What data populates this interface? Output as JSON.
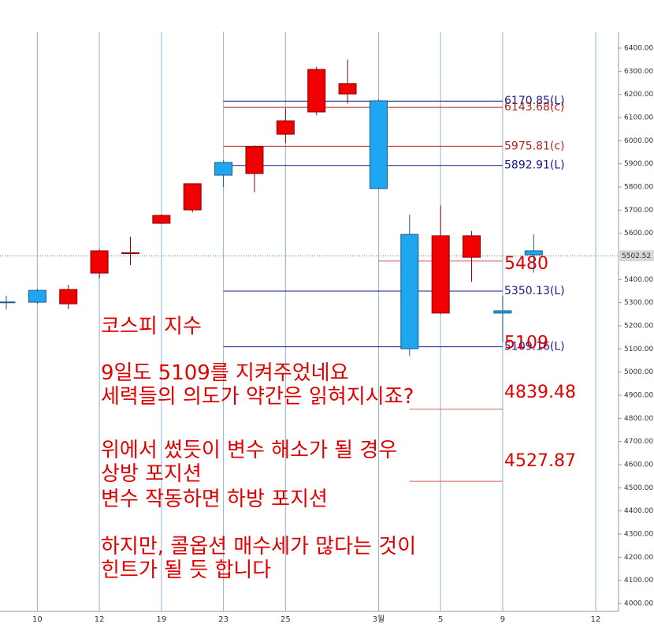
{
  "chart_data": {
    "type": "candlestick",
    "categories": [
      null,
      "10",
      null,
      "12",
      null,
      "19",
      null,
      "23",
      null,
      "25",
      null,
      null,
      "3월",
      null,
      "5",
      null,
      "9",
      null,
      null,
      "12"
    ],
    "open": [
      5303,
      5353,
      5295,
      5428,
      5512,
      5643,
      5701,
      5906,
      5858,
      6028,
      6124,
      6202,
      6172,
      5595,
      5255,
      5496,
      5265,
      5524,
      null,
      null
    ],
    "high": [
      5330,
      5360,
      5377,
      5530,
      5585,
      5680,
      5815,
      5915,
      5980,
      6140,
      6320,
      6350,
      6180,
      5680,
      5720,
      5610,
      5330,
      5595,
      null,
      null
    ],
    "low": [
      5270,
      5295,
      5272,
      5405,
      5462,
      5640,
      5690,
      5800,
      5777,
      5990,
      6110,
      6160,
      5790,
      5070,
      5250,
      5390,
      5130,
      5430,
      null,
      null
    ],
    "close": [
      5302,
      5302,
      5357,
      5524,
      5516,
      5677,
      5814,
      5851,
      5974,
      6086,
      6308,
      6247,
      5793,
      5101,
      5589,
      5589,
      5255,
      5507,
      null,
      null
    ],
    "up_color": "#f00000",
    "down_color": "#1ea7f0",
    "ylim": [
      3980,
      6440
    ],
    "yticks": [
      {
        "value": 4000,
        "label": "4000.00"
      },
      {
        "value": 4100,
        "label": "4100.00"
      },
      {
        "value": 4200,
        "label": "4200.00"
      },
      {
        "value": 4300,
        "label": "4300.00"
      },
      {
        "value": 4400,
        "label": "4400.00"
      },
      {
        "value": 4500,
        "label": "4500.00"
      },
      {
        "value": 4600,
        "label": "4600.00"
      },
      {
        "value": 4700,
        "label": "4700.00"
      },
      {
        "value": 4800,
        "label": "4800.00"
      },
      {
        "value": 4900,
        "label": "4900.00"
      },
      {
        "value": 5000,
        "label": "5000.00"
      },
      {
        "value": 5100,
        "label": "5100.00"
      },
      {
        "value": 5200,
        "label": "5200.00"
      },
      {
        "value": 5300,
        "label": "5300.00"
      },
      {
        "value": 5400,
        "label": "5400.00"
      },
      {
        "value": 5500,
        "label": "5500.00"
      },
      {
        "value": 5600,
        "label": "5600.00"
      },
      {
        "value": 5700,
        "label": "5700.00"
      },
      {
        "value": 5800,
        "label": "5800.00"
      },
      {
        "value": 5900,
        "label": "5900.00"
      },
      {
        "value": 6000,
        "label": "6000.00"
      },
      {
        "value": 6100,
        "label": "6100.00"
      },
      {
        "value": 6200,
        "label": "6200.00"
      },
      {
        "value": 6300,
        "label": "6300.00"
      },
      {
        "value": 6400,
        "label": "6400.00"
      }
    ],
    "current_price": 5502.52,
    "levels": [
      {
        "value": 6170.85,
        "label": "6170.85(L)",
        "color": "#1a1a8c"
      },
      {
        "value": 6143.68,
        "label": "6143.68(c)",
        "color": "#b22222"
      },
      {
        "value": 5975.81,
        "label": "5975.81(c)",
        "color": "#b22222"
      },
      {
        "value": 5892.91,
        "label": "5892.91(L)",
        "color": "#1a1a8c"
      },
      {
        "value": 5350.13,
        "label": "5350.13(L)",
        "color": "#1a1a8c"
      },
      {
        "value": 5109.16,
        "label": "5109.16(L)",
        "color": "#1a1a8c"
      }
    ],
    "big_levels": [
      5480,
      4839.48,
      4527.87
    ],
    "big_label": 5109,
    "annotations": [
      "코스피 지수",
      "9일도 5109를 지켜주었네요",
      "세력들의 의도가 약간은 읽혀지시죠?",
      "위에서 썼듯이 변수 해소가 될 경우",
      "상방 포지션",
      "변수 작동하면 하방 포지션",
      "하지만, 콜옵션 매수세가 많다는 것이",
      "힌트가 될 듯 합니다"
    ]
  }
}
